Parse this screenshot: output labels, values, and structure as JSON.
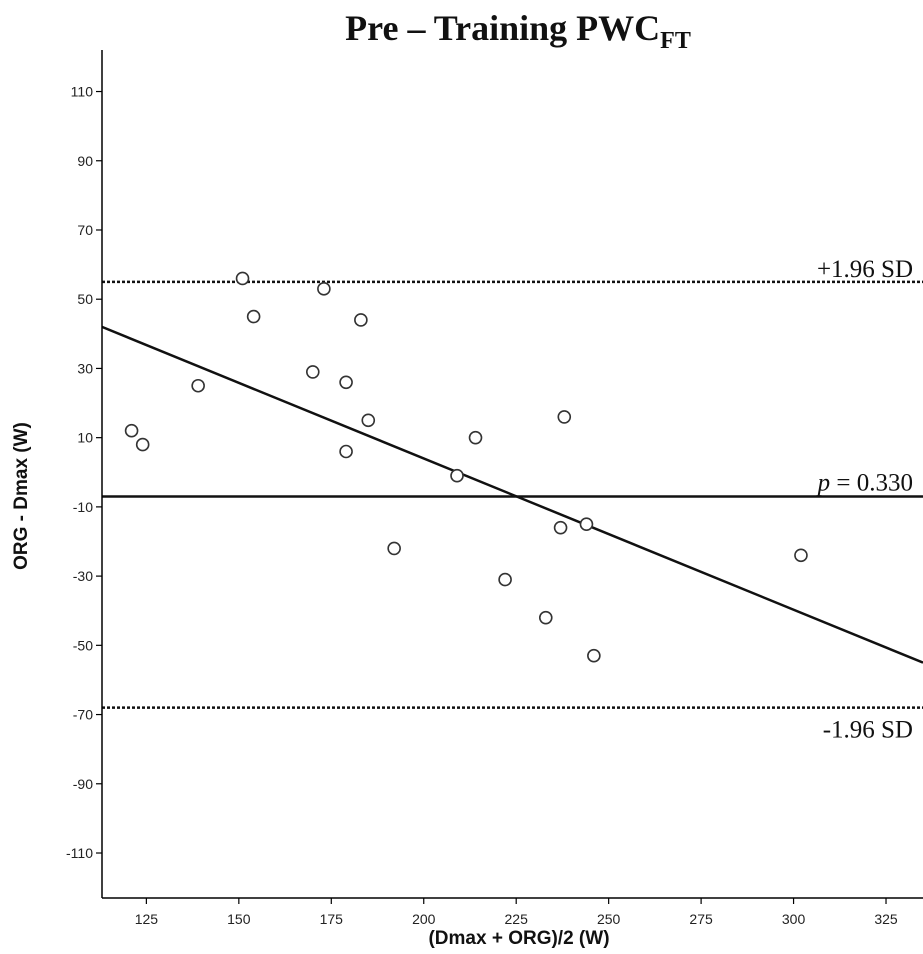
{
  "chart_data": {
    "type": "scatter",
    "title": "Pre – Training PWC",
    "title_subscript": "FT",
    "xlabel": "(Dmax + ORG)/2 (W)",
    "ylabel": "ORG - Dmax (W)",
    "xlim": [
      113,
      335
    ],
    "ylim": [
      -123,
      122
    ],
    "x_ticks": [
      125,
      150,
      175,
      200,
      225,
      250,
      275,
      300,
      325
    ],
    "y_ticks": [
      110,
      90,
      70,
      50,
      30,
      10,
      -10,
      -30,
      -50,
      -70,
      -90,
      -110
    ],
    "grid": false,
    "points": [
      {
        "x": 121,
        "y": 12
      },
      {
        "x": 124,
        "y": 8
      },
      {
        "x": 139,
        "y": 25
      },
      {
        "x": 151,
        "y": 56
      },
      {
        "x": 154,
        "y": 45
      },
      {
        "x": 170,
        "y": 29
      },
      {
        "x": 173,
        "y": 53
      },
      {
        "x": 179,
        "y": 6
      },
      {
        "x": 179,
        "y": 26
      },
      {
        "x": 183,
        "y": 44
      },
      {
        "x": 185,
        "y": 15
      },
      {
        "x": 192,
        "y": -22
      },
      {
        "x": 209,
        "y": -1
      },
      {
        "x": 214,
        "y": 10
      },
      {
        "x": 222,
        "y": -31
      },
      {
        "x": 233,
        "y": -42
      },
      {
        "x": 237,
        "y": -16
      },
      {
        "x": 238,
        "y": 16
      },
      {
        "x": 244,
        "y": -15
      },
      {
        "x": 246,
        "y": -53
      },
      {
        "x": 302,
        "y": -24
      }
    ],
    "reference_lines": [
      {
        "y": 55,
        "style": "dotted",
        "label": "+1.96 SD"
      },
      {
        "y": -7,
        "style": "solid",
        "label_prefix": "p",
        "label_suffix": " = 0.330"
      },
      {
        "y": -68,
        "style": "dotted",
        "label": "-1.96 SD"
      }
    ],
    "regression_line": {
      "x1": 113,
      "y1": 42,
      "x2": 335,
      "y2": -55
    }
  }
}
